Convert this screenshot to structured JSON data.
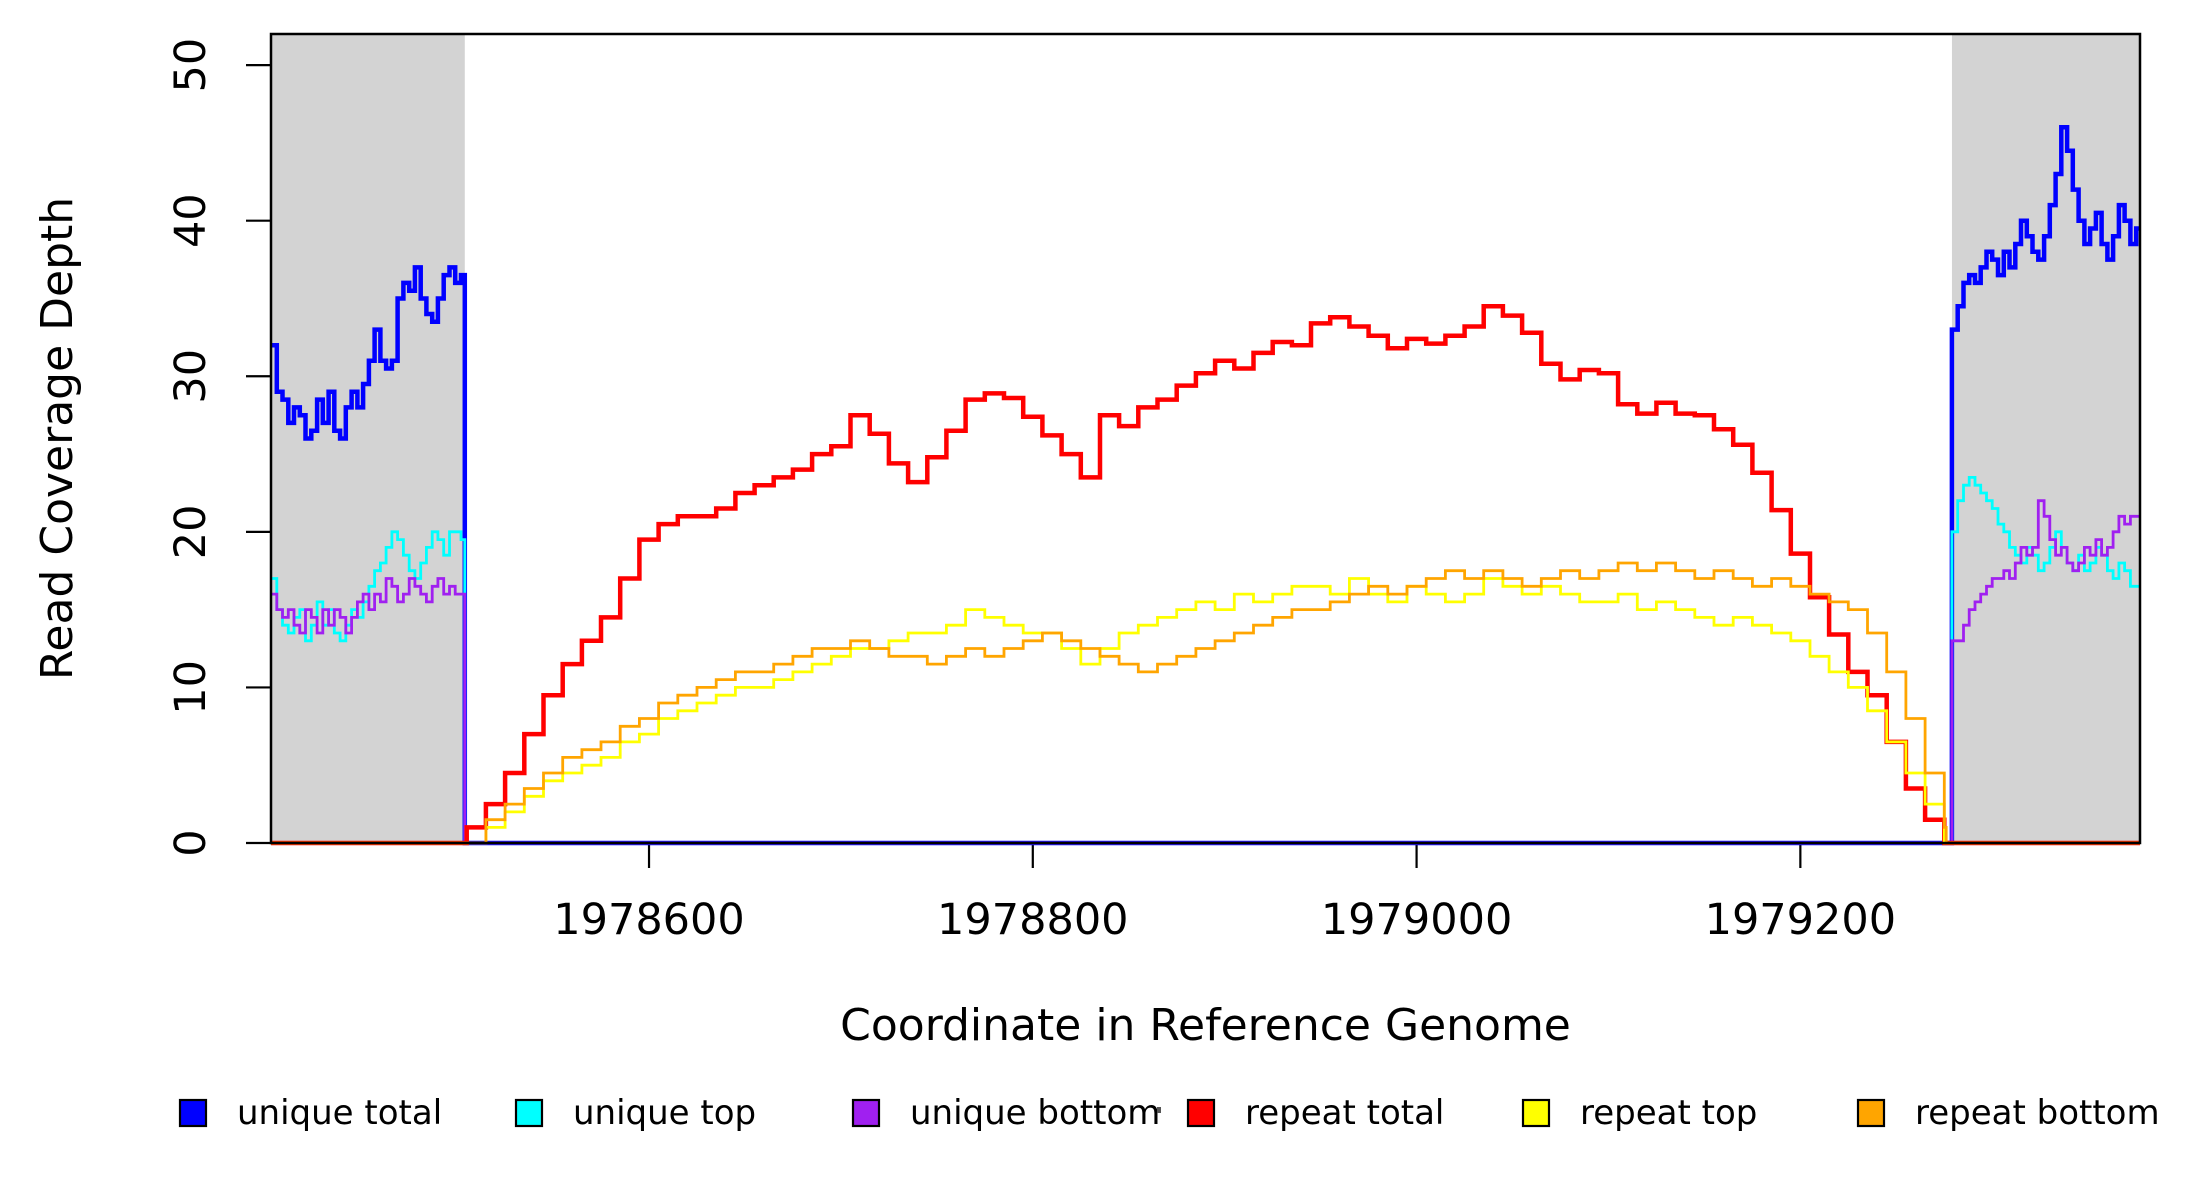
{
  "figure": {
    "ylabel": "Read Coverage Depth",
    "xlabel": "Coordinate in Reference Genome"
  },
  "chart_data": {
    "type": "line",
    "title": "",
    "xlabel": "Coordinate in Reference Genome",
    "ylabel": "Read Coverage Depth",
    "xlim": [
      1978403,
      1979377
    ],
    "ylim": [
      0,
      52
    ],
    "grid": false,
    "legend_position": "bottom",
    "x_ticks": [
      1978600,
      1978800,
      1979000,
      1979200
    ],
    "y_ticks": [
      0,
      10,
      20,
      30,
      40,
      50
    ],
    "masked_band_color": "#D3D3D3",
    "masked_regions": [
      [
        1978403,
        1978504
      ],
      [
        1979279,
        1979377
      ]
    ],
    "series": [
      {
        "name": "unique total",
        "color": "#0000FF",
        "width": 4.5,
        "step": true,
        "segments": [
          {
            "start": 1978403,
            "stepx": 3,
            "values": [
              32,
              29,
              28.5,
              27,
              28,
              27.5,
              26,
              26.5,
              28.5,
              27,
              29,
              26.5,
              26,
              28,
              29,
              28,
              29.5,
              31,
              33,
              31,
              30.5,
              31,
              35,
              36,
              35.5,
              37,
              35,
              34,
              33.5,
              35,
              36.5,
              37,
              36,
              36.5
            ]
          },
          {
            "points": [
              [
                1978504,
                0
              ]
            ]
          },
          {
            "start": 1979279,
            "stepx": 3,
            "values": [
              33,
              34.5,
              36,
              36.5,
              36,
              37,
              38,
              37.5,
              36.5,
              38,
              37,
              38.5,
              40,
              39,
              38,
              37.5,
              39,
              41,
              43,
              46,
              44.5,
              42,
              40,
              38.5,
              39.5,
              40.5,
              38.5,
              37.5,
              39,
              41,
              40,
              38.5,
              39.5
            ]
          }
        ]
      },
      {
        "name": "unique top",
        "color": "#00FFFF",
        "width": 2.8,
        "step": true,
        "segments": [
          {
            "start": 1978403,
            "stepx": 3,
            "values": [
              17,
              15,
              14,
              13.5,
              14.5,
              15,
              13,
              14,
              15.5,
              14,
              15,
              13.5,
              13,
              14,
              15,
              14.5,
              15.5,
              16.5,
              17.5,
              18,
              19,
              20,
              19.5,
              18.5,
              17.5,
              17,
              18,
              19,
              20,
              19.5,
              18.5,
              20,
              20,
              19.5
            ]
          },
          {
            "points": [
              [
                1978504,
                0
              ]
            ]
          },
          {
            "start": 1979279,
            "stepx": 3,
            "values": [
              20,
              22,
              23,
              23.5,
              23,
              22.5,
              22,
              21.5,
              20.5,
              20,
              19,
              18.5,
              18,
              19,
              18.5,
              17.5,
              18,
              19,
              20,
              19,
              18,
              17.5,
              18.5,
              17.5,
              18,
              19,
              18.5,
              17.5,
              17,
              18,
              17.5,
              16.5,
              16.5
            ]
          }
        ]
      },
      {
        "name": "unique bottom",
        "color": "#A020F0",
        "width": 2.8,
        "step": true,
        "segments": [
          {
            "start": 1978403,
            "stepx": 3,
            "values": [
              16,
              15,
              14.5,
              15,
              14,
              13.5,
              15,
              14.5,
              13.5,
              15,
              14,
              15,
              14.5,
              13.5,
              14.5,
              15.5,
              16,
              15,
              16,
              15.5,
              17,
              16.5,
              15.5,
              16,
              17,
              16.5,
              16,
              15.5,
              16.5,
              17,
              16,
              16.5,
              16,
              16
            ]
          },
          {
            "points": [
              [
                1978504,
                0
              ]
            ]
          },
          {
            "start": 1979279,
            "stepx": 3,
            "values": [
              13,
              13,
              14,
              15,
              15.5,
              16,
              16.5,
              17,
              17,
              17.5,
              17,
              18,
              19,
              18.5,
              19,
              22,
              21,
              19.5,
              18.5,
              19,
              18,
              17.5,
              18,
              19,
              18.5,
              19.5,
              18.5,
              19,
              20,
              21,
              20.5,
              21,
              21
            ]
          }
        ]
      },
      {
        "name": "repeat total",
        "color": "#FF0000",
        "width": 4.5,
        "step": true,
        "segments": [
          {
            "points": [
              [
                1978403,
                0
              ],
              [
                1978504,
                0
              ]
            ]
          },
          {
            "start": 1978505,
            "stepx": 10,
            "values": [
              1,
              2.5,
              4.5,
              7,
              9.5,
              11.5,
              13,
              14.5,
              17,
              19.5,
              20.5,
              21,
              21,
              21.5,
              22.5,
              23,
              23.5,
              24,
              25,
              25.5,
              27.5,
              26.3,
              24.4,
              23.2,
              24.8,
              26.5,
              28.5,
              28.9,
              28.6,
              27.4,
              26.2,
              25,
              23.5,
              27.5,
              26.8,
              28,
              28.5,
              29.4,
              30.2,
              31,
              30.5,
              31.5,
              32.2,
              32,
              33.4,
              33.8,
              33.2,
              32.6,
              31.8,
              32.4,
              32.1,
              32.6,
              33.2,
              34.5,
              33.9,
              32.8,
              30.8,
              29.8,
              30.4,
              30.2,
              28.2,
              27.6,
              28.3,
              27.6,
              27.5,
              26.6,
              25.6,
              23.8,
              21.4,
              18.6,
              15.8,
              13.4,
              11,
              9.5,
              6.5,
              3.5,
              1.5,
              0
            ]
          },
          {
            "points": [
              [
                1979277,
                0
              ],
              [
                1979377,
                0
              ]
            ]
          }
        ]
      },
      {
        "name": "repeat top",
        "color": "#FFFF00",
        "width": 2.8,
        "step": true,
        "segments": [
          {
            "points": [
              [
                1978403,
                0
              ],
              [
                1978504,
                0
              ]
            ]
          },
          {
            "start": 1978505,
            "stepx": 10,
            "values": [
              0,
              1,
              2,
              3,
              4,
              4.5,
              5,
              5.5,
              6.5,
              7,
              8,
              8.5,
              9,
              9.5,
              10,
              10,
              10.5,
              11,
              11.5,
              12,
              12.5,
              12.5,
              13,
              13.5,
              13.5,
              14,
              15,
              14.5,
              14,
              13.5,
              13.5,
              12.5,
              11.5,
              12.5,
              13.5,
              14,
              14.5,
              15,
              15.5,
              15,
              16,
              15.5,
              16,
              16.5,
              16.5,
              16,
              17,
              16,
              15.5,
              16.5,
              16,
              15.5,
              16,
              17,
              16.5,
              16,
              16.5,
              16,
              15.5,
              15.5,
              16,
              15,
              15.5,
              15,
              14.5,
              14,
              14.5,
              14,
              13.5,
              13,
              12,
              11,
              10,
              8.5,
              6.5,
              4.5,
              2.5,
              0.5
            ]
          },
          {
            "points": [
              [
                1979275,
                0
              ],
              [
                1979377,
                0
              ]
            ]
          }
        ]
      },
      {
        "name": "repeat bottom",
        "color": "#FFA500",
        "width": 2.8,
        "step": true,
        "segments": [
          {
            "points": [
              [
                1978403,
                0
              ],
              [
                1978504,
                0
              ]
            ]
          },
          {
            "start": 1978505,
            "stepx": 10,
            "values": [
              0,
              1.5,
              2.5,
              3.5,
              4.5,
              5.5,
              6,
              6.5,
              7.5,
              8,
              9,
              9.5,
              10,
              10.5,
              11,
              11,
              11.5,
              12,
              12.5,
              12.5,
              13,
              12.5,
              12,
              12,
              11.5,
              12,
              12.5,
              12,
              12.5,
              13,
              13.5,
              13,
              12.5,
              12,
              11.5,
              11,
              11.5,
              12,
              12.5,
              13,
              13.5,
              14,
              14.5,
              15,
              15,
              15.5,
              16,
              16.5,
              16,
              16.5,
              17,
              17.5,
              17,
              17.5,
              17,
              16.5,
              17,
              17.5,
              17,
              17.5,
              18,
              17.5,
              18,
              17.5,
              17,
              17.5,
              17,
              16.5,
              17,
              16.5,
              16,
              15.5,
              15,
              13.5,
              11,
              8,
              4.5,
              1
            ]
          },
          {
            "points": [
              [
                1979276,
                0
              ],
              [
                1979377,
                0
              ]
            ]
          }
        ]
      }
    ]
  },
  "legend": {
    "items": [
      {
        "label": "unique total",
        "color": "#0000FF"
      },
      {
        "label": "unique top",
        "color": "#00FFFF"
      },
      {
        "label": "unique bottom",
        "color": "#A020F0"
      },
      {
        "label": "repeat total",
        "color": "#FF0000"
      },
      {
        "label": "repeat top",
        "color": "#FFFF00"
      },
      {
        "label": "repeat bottom",
        "color": "#FFA500"
      }
    ]
  }
}
